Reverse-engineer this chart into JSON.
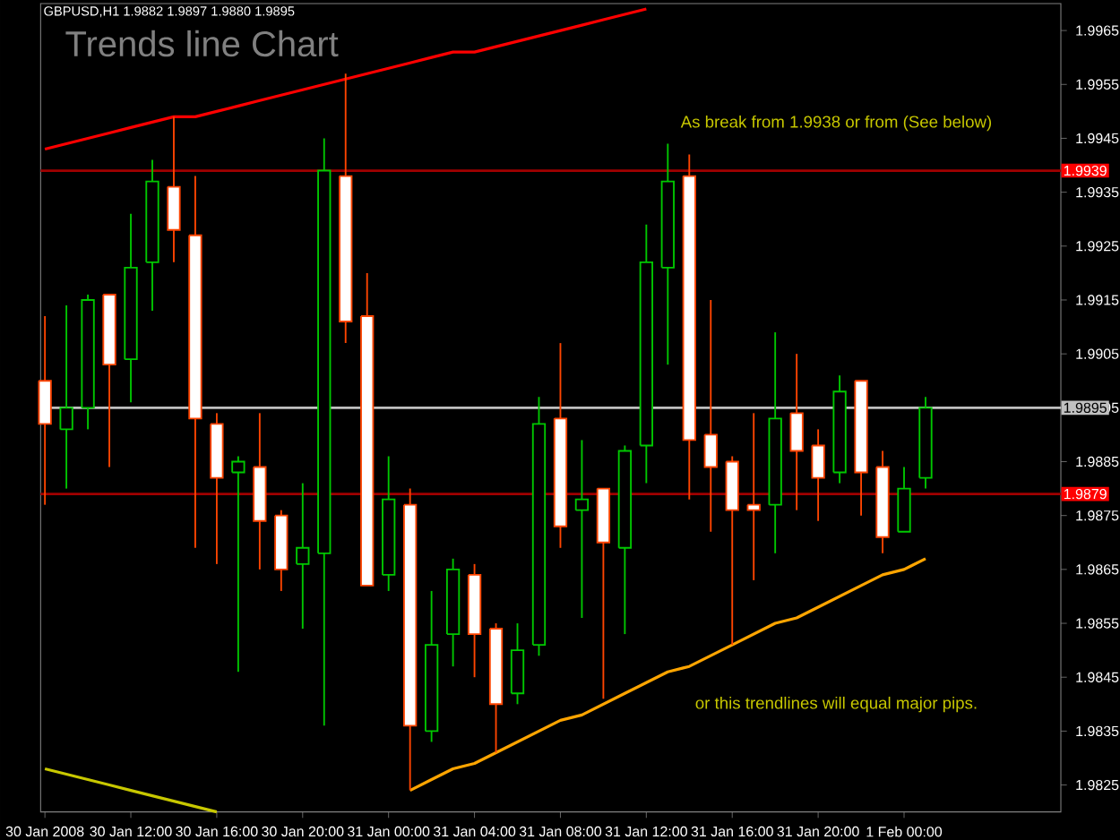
{
  "chart_data": {
    "type": "candlestick",
    "title": "Trends line Chart",
    "subtitle": "GBPUSD,H1  1.9882 1.9897 1.9880 1.9895",
    "categories": [
      "30 Jan 2008",
      null,
      null,
      null,
      "30 Jan 12:00",
      null,
      null,
      null,
      "30 Jan 16:00",
      null,
      null,
      null,
      "30 Jan 20:00",
      null,
      null,
      null,
      "31 Jan 00:00",
      null,
      null,
      null,
      "31 Jan 04:00",
      null,
      null,
      null,
      "31 Jan 08:00",
      null,
      null,
      null,
      "31 Jan 12:00",
      null,
      null,
      null,
      "31 Jan 16:00",
      null,
      null,
      null,
      "31 Jan 20:00",
      null,
      null,
      null,
      "1 Feb 00:00",
      null
    ],
    "ohlc": [
      [
        1.99,
        1.9912,
        1.9877,
        1.9892
      ],
      [
        1.9891,
        1.9914,
        1.988,
        1.9895
      ],
      [
        1.9895,
        1.9916,
        1.9891,
        1.9915
      ],
      [
        1.9916,
        1.9916,
        1.9884,
        1.9903
      ],
      [
        1.9904,
        1.9931,
        1.9896,
        1.9921
      ],
      [
        1.9922,
        1.9941,
        1.9913,
        1.9937
      ],
      [
        1.9936,
        1.9949,
        1.9922,
        1.9928
      ],
      [
        1.9927,
        1.9938,
        1.9869,
        1.9893
      ],
      [
        1.9892,
        1.9894,
        1.9866,
        1.9882
      ],
      [
        1.9883,
        1.9886,
        1.9846,
        1.9885
      ],
      [
        1.9884,
        1.9894,
        1.9865,
        1.9874
      ],
      [
        1.9875,
        1.9876,
        1.9861,
        1.9865
      ],
      [
        1.9866,
        1.9881,
        1.9854,
        1.9869
      ],
      [
        1.9868,
        1.9945,
        1.9836,
        1.9939
      ],
      [
        1.9938,
        1.9957,
        1.9907,
        1.9911
      ],
      [
        1.9912,
        1.992,
        1.9862,
        1.9862
      ],
      [
        1.9864,
        1.9886,
        1.9861,
        1.9878
      ],
      [
        1.9877,
        1.988,
        1.9824,
        1.9836
      ],
      [
        1.9835,
        1.9861,
        1.9833,
        1.9851
      ],
      [
        1.9853,
        1.9867,
        1.9847,
        1.9865
      ],
      [
        1.9864,
        1.9866,
        1.9845,
        1.9853
      ],
      [
        1.9854,
        1.9855,
        1.9831,
        1.984
      ],
      [
        1.9842,
        1.9855,
        1.984,
        1.985
      ],
      [
        1.9851,
        1.9897,
        1.9849,
        1.9892
      ],
      [
        1.9893,
        1.9907,
        1.9869,
        1.9873
      ],
      [
        1.9876,
        1.9889,
        1.9856,
        1.9878
      ],
      [
        1.988,
        1.988,
        1.9841,
        1.987
      ],
      [
        1.9869,
        1.9888,
        1.9853,
        1.9887
      ],
      [
        1.9888,
        1.9929,
        1.9881,
        1.9922
      ],
      [
        1.9921,
        1.9944,
        1.9903,
        1.9937
      ],
      [
        1.9938,
        1.9942,
        1.9878,
        1.9889
      ],
      [
        1.989,
        1.9915,
        1.9872,
        1.9884
      ],
      [
        1.9885,
        1.9886,
        1.9851,
        1.9876
      ],
      [
        1.9877,
        1.9894,
        1.9863,
        1.9876
      ],
      [
        1.9877,
        1.9909,
        1.9868,
        1.9893
      ],
      [
        1.9894,
        1.9905,
        1.9876,
        1.9887
      ],
      [
        1.9888,
        1.9891,
        1.9874,
        1.9882
      ],
      [
        1.9883,
        1.9901,
        1.9881,
        1.9898
      ],
      [
        1.99,
        1.99,
        1.9875,
        1.9883
      ],
      [
        1.9884,
        1.9887,
        1.9868,
        1.9871
      ],
      [
        1.9872,
        1.9884,
        1.9872,
        1.988
      ],
      [
        1.9882,
        1.9897,
        1.988,
        1.9895
      ]
    ],
    "series": [
      {
        "type": "line",
        "color": "#ff0000",
        "values": [
          1.9943,
          1.9944,
          1.9945,
          1.9946,
          1.9947,
          1.9948,
          1.9949,
          1.9949,
          1.995,
          1.9951,
          1.9952,
          1.9953,
          1.9954,
          1.9955,
          1.9956,
          1.9957,
          1.9958,
          1.9959,
          1.996,
          1.9961,
          1.9961,
          1.9962,
          1.9963,
          1.9964,
          1.9965,
          1.9966,
          1.9967,
          1.9968,
          1.9969,
          null,
          null,
          null,
          null,
          null,
          null,
          null,
          null,
          null,
          null,
          null,
          null,
          null
        ]
      },
      {
        "type": "line",
        "color": "#ffa500",
        "values": [
          null,
          null,
          null,
          null,
          null,
          null,
          null,
          null,
          null,
          null,
          null,
          null,
          null,
          null,
          null,
          null,
          null,
          1.9824,
          1.9826,
          1.9828,
          1.9829,
          1.9831,
          1.9833,
          1.9835,
          1.9837,
          1.9838,
          1.984,
          1.9842,
          1.9844,
          1.9846,
          1.9847,
          1.9849,
          1.9851,
          1.9853,
          1.9855,
          1.9856,
          1.9858,
          1.986,
          1.9862,
          1.9864,
          1.9865,
          1.9867
        ]
      },
      {
        "type": "line",
        "color": "#c8c800",
        "values": [
          1.9828,
          1.9827,
          1.9826,
          1.9825,
          1.9824,
          1.9823,
          1.9822,
          1.9821,
          1.982,
          null,
          null,
          null,
          null,
          null,
          null,
          null,
          null,
          null,
          null,
          null,
          null,
          null,
          null,
          null,
          null,
          null,
          null,
          null,
          null,
          null,
          null,
          null,
          null,
          null,
          null,
          null,
          null,
          null,
          null,
          null,
          null,
          null
        ]
      }
    ],
    "ref_lines": [
      {
        "axis": "y",
        "value": 1.9939,
        "label": "1.9939",
        "color": "#a00000"
      },
      {
        "axis": "y",
        "value": 1.9895,
        "label": "1.9895",
        "color": "#c0c0c0"
      },
      {
        "axis": "y",
        "value": 1.9879,
        "label": "1.9879",
        "color": "#a00000"
      }
    ],
    "annotations": [
      "As break from 1.9938 or from (See below)",
      "or this trendlines will equal major pips."
    ],
    "ylim": [
      1.982,
      1.997
    ],
    "yticks": [
      1.9965,
      1.9955,
      1.9945,
      1.9935,
      1.9925,
      1.9915,
      1.9905,
      1.9895,
      1.9885,
      1.9875,
      1.9865,
      1.9855,
      1.9845,
      1.9835,
      1.9825
    ]
  }
}
